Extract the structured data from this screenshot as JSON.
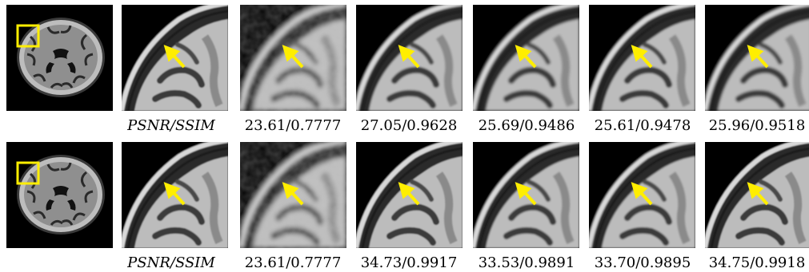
{
  "figure": {
    "rows": [
      {
        "label": "PSNR/SSIM",
        "metrics": [
          "23.61/0.7777",
          "27.05/0.9628",
          "25.69/0.9486",
          "25.61/0.9478",
          "25.96/0.9518"
        ],
        "variants": [
          {
            "blur": 0.8,
            "noise": false
          },
          {
            "blur": 2.8,
            "noise": true
          },
          {
            "blur": 1.2,
            "noise": false
          },
          {
            "blur": 1.6,
            "noise": false
          },
          {
            "blur": 1.4,
            "noise": false
          },
          {
            "blur": 1.5,
            "noise": false
          }
        ]
      },
      {
        "label": "PSNR/SSIM",
        "metrics": [
          "23.61/0.7777",
          "34.73/0.9917",
          "33.53/0.9891",
          "33.70/0.9895",
          "34.75/0.9918"
        ],
        "variants": [
          {
            "blur": 0.8,
            "noise": false
          },
          {
            "blur": 2.8,
            "noise": true
          },
          {
            "blur": 0.9,
            "noise": false
          },
          {
            "blur": 1.0,
            "noise": false
          },
          {
            "blur": 1.0,
            "noise": false
          },
          {
            "blur": 0.9,
            "noise": false
          }
        ]
      }
    ],
    "colors": {
      "highlight": "#ffee00",
      "background": "#000000"
    }
  }
}
